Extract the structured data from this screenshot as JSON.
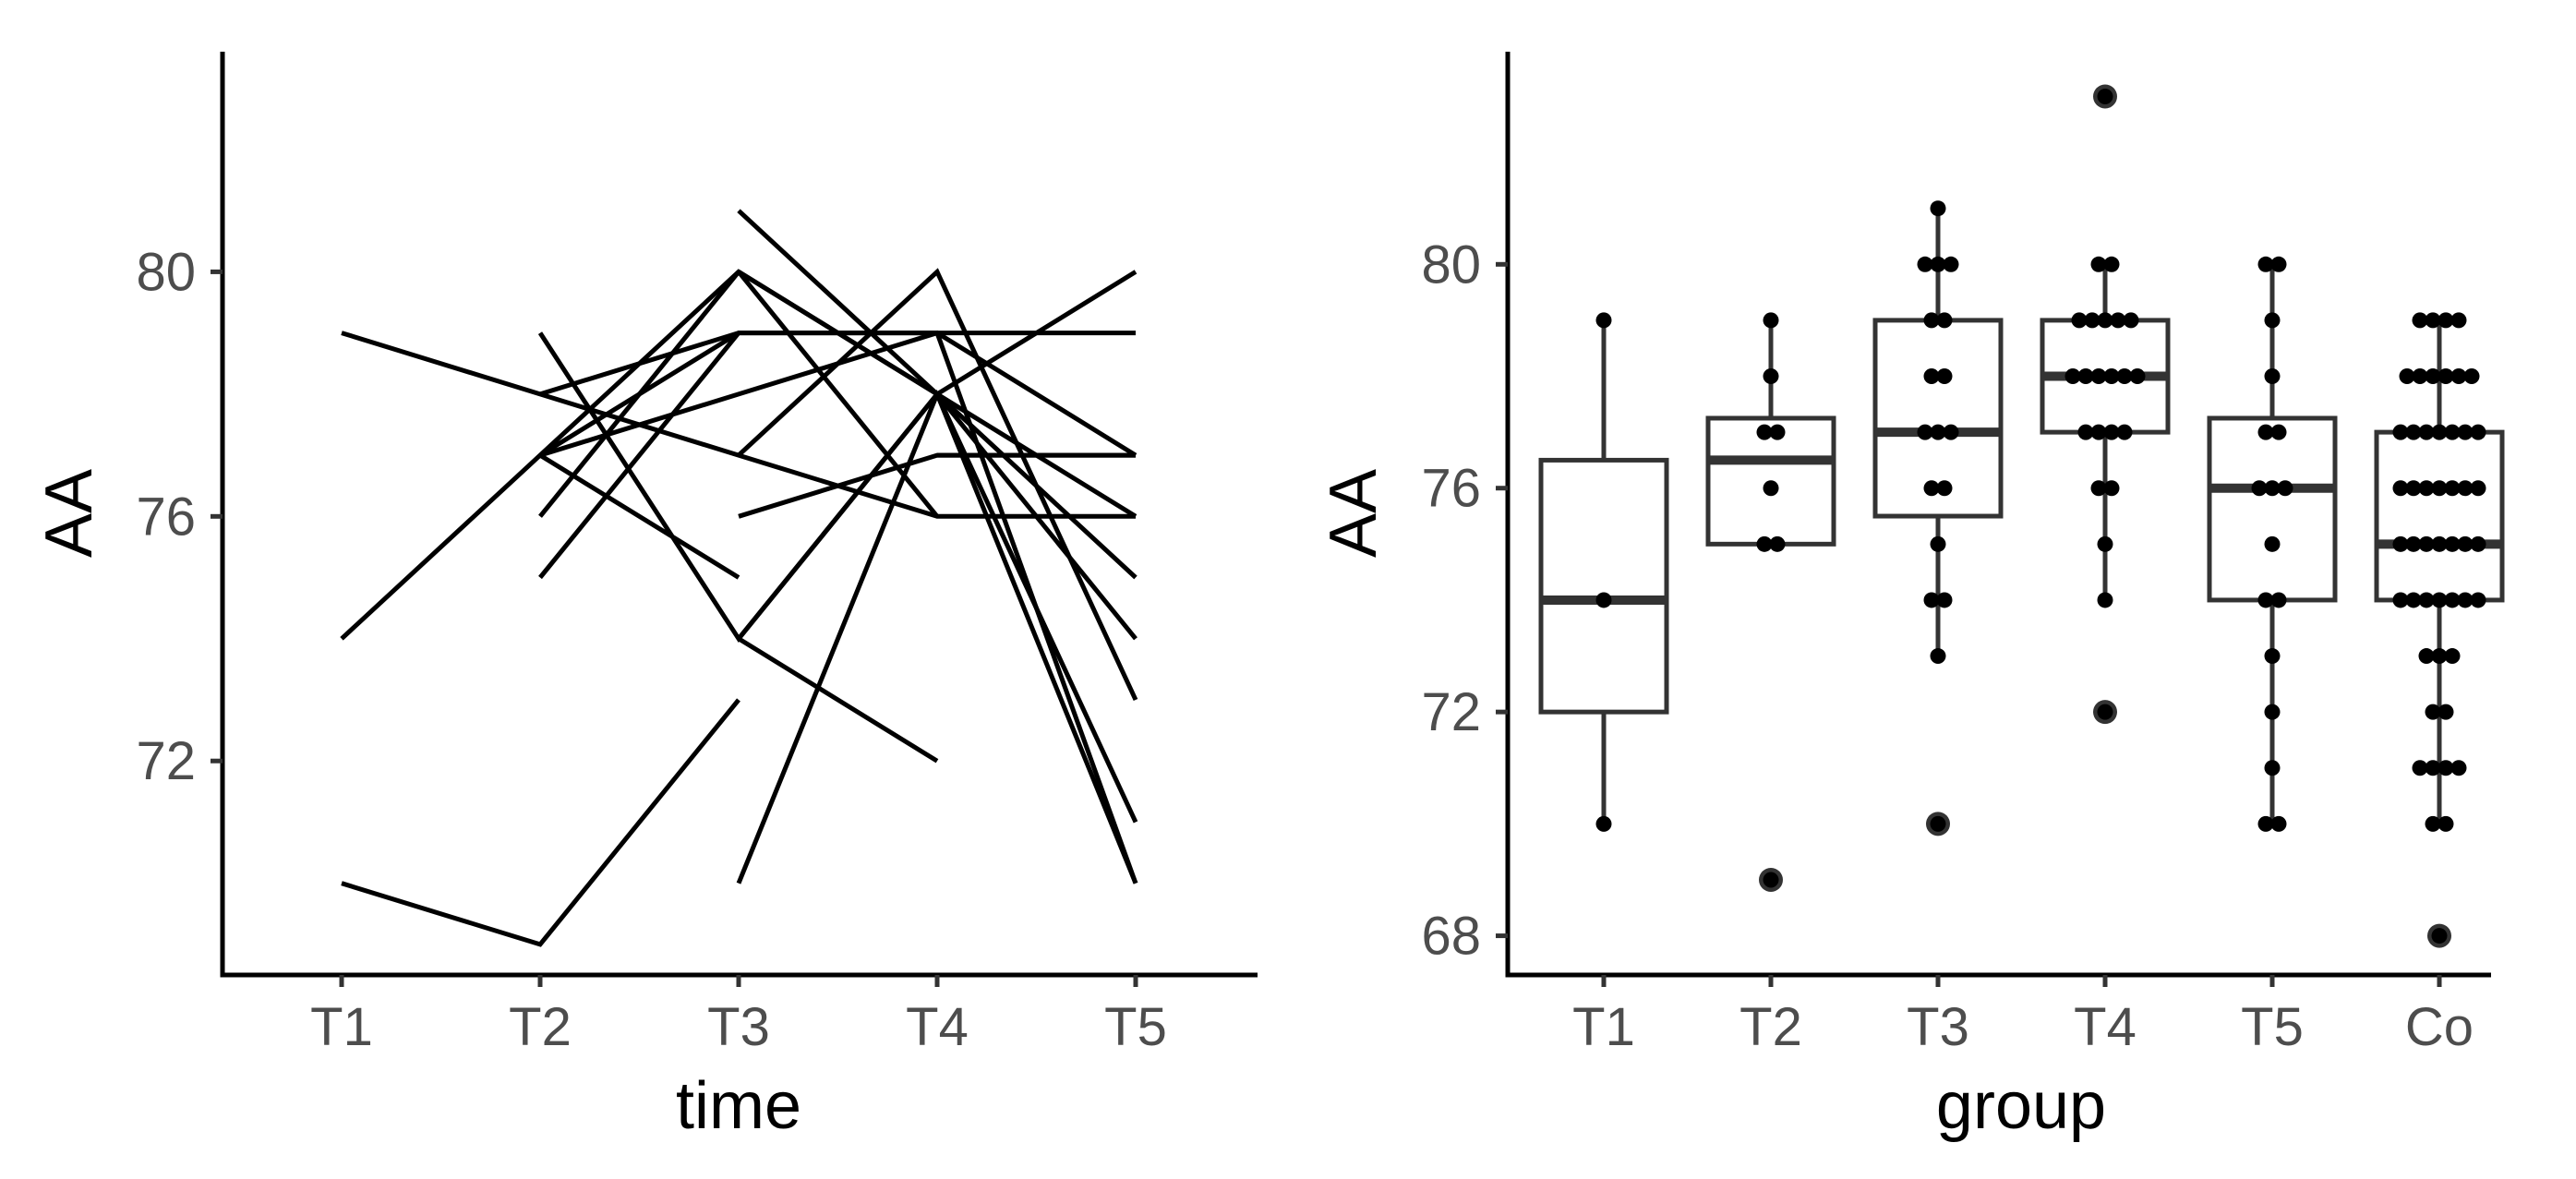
{
  "chart_data": [
    {
      "type": "line",
      "xlabel": "time",
      "ylabel": "AA",
      "categories": [
        "T1",
        "T2",
        "T3",
        "T4",
        "T5"
      ],
      "ylim": [
        68.5,
        83.6
      ],
      "yticks": [
        72,
        76,
        80
      ],
      "grid": false,
      "series": [
        {
          "x": [
            "T1",
            "T2",
            "T3"
          ],
          "values": [
            70,
            69,
            73
          ]
        },
        {
          "x": [
            "T1",
            "T2",
            "T3",
            "T4",
            "T5"
          ],
          "values": [
            74,
            77,
            80,
            78,
            76
          ]
        },
        {
          "x": [
            "T1",
            "T2",
            "T3",
            "T4",
            "T5"
          ],
          "values": [
            79,
            78,
            77,
            76,
            76
          ]
        },
        {
          "x": [
            "T2",
            "T3",
            "T4",
            "T5"
          ],
          "values": [
            79,
            74,
            78,
            80
          ]
        },
        {
          "x": [
            "T2",
            "T3",
            "T4"
          ],
          "values": [
            77,
            79,
            79
          ]
        },
        {
          "x": [
            "T2",
            "T3",
            "T4",
            "T5"
          ],
          "values": [
            77,
            78,
            79,
            77
          ]
        },
        {
          "x": [
            "T2",
            "T3",
            "T4",
            "T5"
          ],
          "values": [
            78,
            79,
            79,
            79
          ]
        },
        {
          "x": [
            "T2",
            "T3"
          ],
          "values": [
            76,
            80
          ]
        },
        {
          "x": [
            "T2",
            "T3"
          ],
          "values": [
            75,
            79
          ]
        },
        {
          "x": [
            "T2",
            "T3"
          ],
          "values": [
            77,
            75
          ]
        },
        {
          "x": [
            "T3",
            "T4",
            "T5"
          ],
          "values": [
            81,
            78,
            70
          ]
        },
        {
          "x": [
            "T3",
            "T4",
            "T5"
          ],
          "values": [
            80,
            78,
            71
          ]
        },
        {
          "x": [
            "T3",
            "T4",
            "T5"
          ],
          "values": [
            77,
            80,
            73
          ]
        },
        {
          "x": [
            "T3",
            "T4",
            "T5"
          ],
          "values": [
            76,
            77,
            77
          ]
        },
        {
          "x": [
            "T3",
            "T4",
            "T5"
          ],
          "values": [
            74,
            78,
            75
          ]
        },
        {
          "x": [
            "T3",
            "T4",
            "T5"
          ],
          "values": [
            70,
            78,
            74
          ]
        },
        {
          "x": [
            "T3",
            "T4"
          ],
          "values": [
            74,
            72
          ]
        },
        {
          "x": [
            "T3",
            "T4"
          ],
          "values": [
            80,
            76
          ]
        },
        {
          "x": [
            "T4",
            "T5"
          ],
          "values": [
            79,
            70
          ]
        },
        {
          "x": [
            "T4",
            "T5"
          ],
          "values": [
            77,
            77
          ]
        }
      ]
    },
    {
      "type": "box",
      "xlabel": "group",
      "ylabel": "AA",
      "categories": [
        "T1",
        "T2",
        "T3",
        "T4",
        "T5",
        "Co"
      ],
      "ylim": [
        67.3,
        83.8
      ],
      "yticks": [
        68,
        72,
        76,
        80
      ],
      "grid": false,
      "boxes": [
        {
          "category": "T1",
          "q1": 72,
          "median": 74,
          "q3": 76.5,
          "whisker_low": 70,
          "whisker_high": 79,
          "outliers": [],
          "points": [
            70,
            74,
            79
          ]
        },
        {
          "category": "T2",
          "q1": 75,
          "median": 76.5,
          "q3": 77.25,
          "whisker_low": 75,
          "whisker_high": 79,
          "outliers": [
            69
          ],
          "points": [
            69,
            75,
            75,
            76,
            77,
            77,
            78,
            79
          ]
        },
        {
          "category": "T3",
          "q1": 75.5,
          "median": 77,
          "q3": 79,
          "whisker_low": 73,
          "whisker_high": 81,
          "outliers": [
            70
          ],
          "points": [
            70,
            73,
            74,
            74,
            75,
            76,
            76,
            77,
            77,
            77,
            78,
            78,
            79,
            79,
            80,
            80,
            80,
            81
          ]
        },
        {
          "category": "T4",
          "q1": 77,
          "median": 78,
          "q3": 79,
          "whisker_low": 74,
          "whisker_high": 80,
          "outliers": [
            72,
            83
          ],
          "points": [
            72,
            74,
            75,
            76,
            76,
            77,
            77,
            77,
            77,
            78,
            78,
            78,
            78,
            78,
            78,
            79,
            79,
            79,
            79,
            79,
            80,
            80,
            83
          ]
        },
        {
          "category": "T5",
          "q1": 74,
          "median": 76,
          "q3": 77.25,
          "whisker_low": 70,
          "whisker_high": 80,
          "outliers": [],
          "points": [
            70,
            70,
            71,
            72,
            73,
            74,
            74,
            75,
            76,
            76,
            76,
            77,
            77,
            78,
            79,
            80,
            80
          ]
        },
        {
          "category": "Co",
          "q1": 74,
          "median": 75,
          "q3": 77,
          "whisker_low": 70,
          "whisker_high": 79,
          "outliers": [
            68
          ],
          "points": [
            68,
            70,
            70,
            71,
            71,
            71,
            71,
            72,
            72,
            73,
            73,
            73,
            74,
            74,
            74,
            74,
            74,
            74,
            74,
            75,
            75,
            75,
            75,
            75,
            75,
            75,
            76,
            76,
            76,
            76,
            76,
            76,
            76,
            77,
            77,
            77,
            77,
            77,
            77,
            77,
            78,
            78,
            78,
            78,
            78,
            78,
            79,
            79,
            79,
            79
          ]
        }
      ]
    }
  ]
}
